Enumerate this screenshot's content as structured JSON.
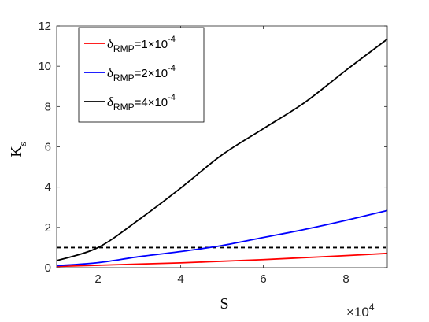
{
  "chart_data": {
    "type": "line",
    "xlabel": "S",
    "ylabel": "K",
    "ylabel_sub": "s",
    "x_multiplier": "×10",
    "x_multiplier_exp": "4",
    "xlim": [
      1,
      9
    ],
    "ylim": [
      0,
      12
    ],
    "xticks": [
      2,
      4,
      6,
      8
    ],
    "xtick_labels": [
      "2",
      "4",
      "6",
      "8"
    ],
    "yticks": [
      0,
      2,
      4,
      6,
      8,
      10,
      12
    ],
    "ytick_labels": [
      "0",
      "2",
      "4",
      "6",
      "8",
      "10",
      "12"
    ],
    "grid": false,
    "legend_position": "top-left",
    "reference_line": {
      "y": 1,
      "style": "dashed",
      "color": "#000000"
    },
    "x": [
      1,
      2,
      3,
      4,
      5,
      6,
      7,
      8,
      9
    ],
    "series": [
      {
        "name": "δ_RMP=1×10^-4",
        "legend": {
          "delta": "δ",
          "sub": "RMP",
          "eq": "=1",
          "times": "×",
          "base": "10",
          "exp": "-4"
        },
        "color": "#ff0000",
        "values": [
          0.06,
          0.12,
          0.18,
          0.24,
          0.32,
          0.4,
          0.5,
          0.6,
          0.71
        ]
      },
      {
        "name": "δ_RMP=2×10^-4",
        "legend": {
          "delta": "δ",
          "sub": "RMP",
          "eq": "=2",
          "times": "×",
          "base": "10",
          "exp": "-4"
        },
        "color": "#0000ff",
        "values": [
          0.1,
          0.25,
          0.55,
          0.8,
          1.1,
          1.5,
          1.9,
          2.35,
          2.84
        ]
      },
      {
        "name": "δ_RMP=4×10^-4",
        "legend": {
          "delta": "δ",
          "sub": "RMP",
          "eq": "=4",
          "times": "×",
          "base": "10",
          "exp": "-4"
        },
        "color": "#000000",
        "values": [
          0.35,
          1.0,
          2.4,
          3.95,
          5.6,
          6.9,
          8.2,
          9.8,
          11.35
        ]
      }
    ]
  }
}
